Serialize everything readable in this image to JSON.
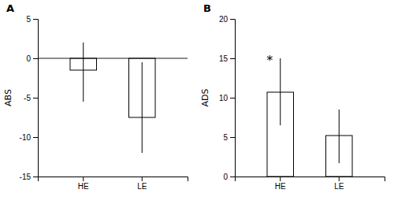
{
  "chart_data": [
    {
      "type": "bar",
      "title": "A",
      "ylabel": "ABS",
      "categories": [
        "HE",
        "LE"
      ],
      "values": [
        -1.5,
        -7.5
      ],
      "errors_upper": [
        3.5,
        7.0
      ],
      "errors_lower": [
        4.0,
        4.5
      ],
      "color": "#ffffff",
      "ylim": [
        -15,
        5
      ],
      "yticks": [
        -15,
        -10,
        -5,
        0,
        5
      ]
    },
    {
      "type": "bar",
      "title": "B",
      "ylabel": "ADS",
      "categories": [
        "HE",
        "LE"
      ],
      "values": [
        10.7,
        5.2
      ],
      "errors_upper": [
        4.3,
        3.3
      ],
      "errors_lower": [
        4.2,
        3.5
      ],
      "color": "#ffffff",
      "annotations": [
        {
          "text": "*",
          "category": "HE"
        }
      ],
      "ylim": [
        0,
        20
      ],
      "yticks": [
        0,
        5,
        10,
        15,
        20
      ]
    }
  ]
}
